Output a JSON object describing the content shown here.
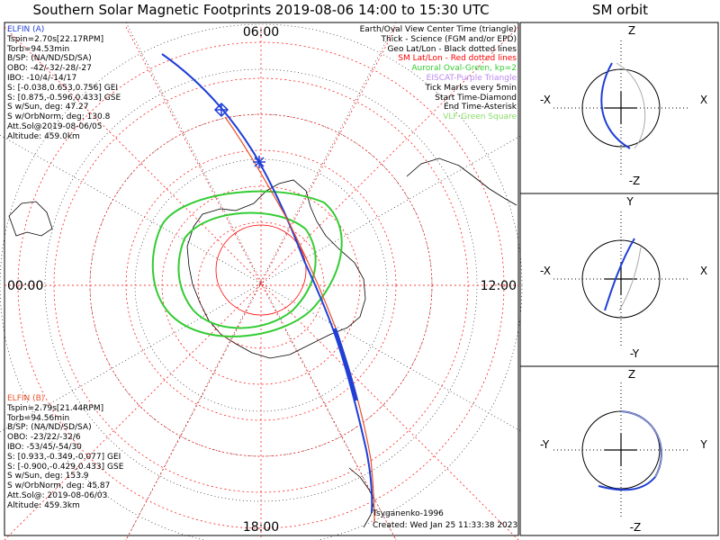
{
  "title": "Southern Solar Magnetic Footprints 2019-08-06 14:00 to 15:30 UTC",
  "sm_orbit_title": "SM orbit",
  "main_plot": {
    "time_labels": {
      "top": "06:00",
      "left": "00:00",
      "right": "12:00",
      "bottom": "18:00"
    }
  },
  "elfin_a": {
    "header": "ELFIN (A)",
    "color": "#1f3fd6",
    "lines": [
      "Tspin=2.70s[22.17RPM]",
      "Torb=94.53min",
      "B/SP: (NA/ND/SD/SA)",
      "OBO: -42/-32/-28/-27",
      "IBO: -10/4/-14/17",
      "S: [-0.038,0.653,0.756] GEI",
      "S: [0.875,-0.596,0.433] GSE",
      "S w/Sun, deg: 47.27",
      "S w/OrbNorm, deg: 130.8",
      "Att.Sol@2019-08-06/05",
      "Altitude: 459.0km"
    ]
  },
  "elfin_b": {
    "header": "ELFIN (B)",
    "color": "#e8502a",
    "lines": [
      "Tspin=2.79s[21.44RPM]",
      "Torb=94.56min",
      "B/SP: (NA/ND/SD/SA)",
      "OBO: -23/22/-32/6",
      "IBO: -53/45/-54/30",
      "S: [0.933,-0.349,-0.077] GEI",
      "S: [-0.900,-0.429,0.433] GSE",
      "S w/Sun, deg: 153.9",
      "S w/OrbNorm, deg: 45.87",
      "Att.Sol@: 2019-08-06/03",
      "Altitude: 459.3km"
    ]
  },
  "legend": [
    {
      "text": "Earth/Oval View Center Time (triangle)",
      "color": "#000000"
    },
    {
      "text": "Thick - Science (FGM and/or EPD)",
      "color": "#000000"
    },
    {
      "text": "Geo Lat/Lon - Black dotted lines",
      "color": "#000000"
    },
    {
      "text": "SM Lat/Lon - Red dotted lines",
      "color": "#ff0000"
    },
    {
      "text": "Auroral Oval-Green, kp=2",
      "color": "#33cc33"
    },
    {
      "text": "EISCAT-Purple Triangle",
      "color": "#bb88ee"
    },
    {
      "text": "Tick Marks every 5min",
      "color": "#000000"
    },
    {
      "text": "Start Time-Diamond",
      "color": "#000000"
    },
    {
      "text": "End Time-Asterisk",
      "color": "#000000"
    },
    {
      "text": "VLF-Green Square",
      "color": "#88dd66"
    }
  ],
  "footer": {
    "model": "Tsyganenko-1996",
    "created": "Created: Wed Jan 25 11:33:38 2023"
  },
  "sm_panels": [
    {
      "top": "Z",
      "bottom": "-Z",
      "left": "-X",
      "right": "X"
    },
    {
      "top": "Y",
      "bottom": "-Y",
      "left": "-X",
      "right": "X"
    },
    {
      "top": "Z",
      "bottom": "-Z",
      "left": "-Y",
      "right": "Y"
    }
  ],
  "colors": {
    "elfin_a": "#1f3fd6",
    "elfin_b": "#e8502a",
    "auroral_oval": "#33cc33",
    "sm_grid": "#ff0000",
    "geo_grid": "#000000"
  }
}
